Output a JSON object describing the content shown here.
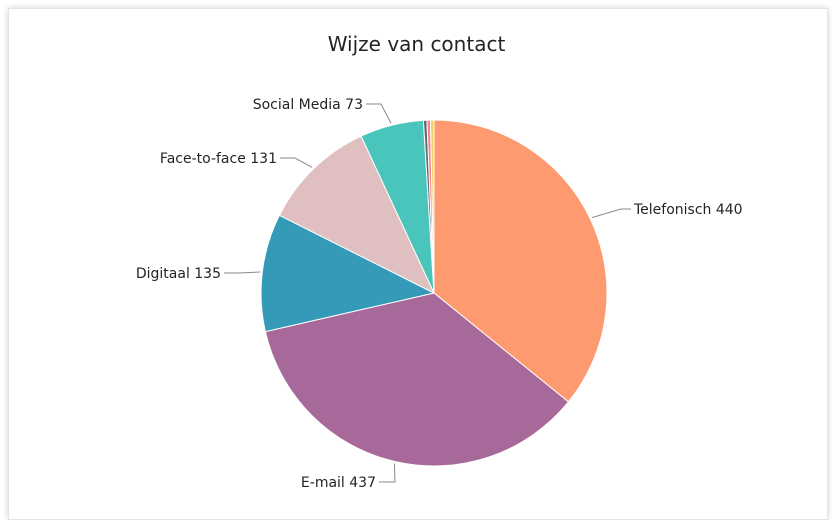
{
  "chart_data": {
    "type": "pie",
    "title": "Wijze van contact",
    "categories": [
      "Telefonisch",
      "E-mail",
      "Digitaal",
      "Face-to-face",
      "Social Media",
      "",
      "",
      ""
    ],
    "values": [
      440,
      437,
      135,
      131,
      73,
      4,
      4,
      4
    ],
    "labels": [
      "Telefonisch 440",
      "E-mail 437",
      "Digitaal 135",
      "Face-to-face 131",
      "Social Media 73",
      "",
      "",
      ""
    ],
    "colors": [
      "#FD9A6F",
      "#A66999",
      "#3599B8",
      "#DFBFBF",
      "#4AC5BB",
      "#5F6B6D",
      "#FB8281",
      "#F4D25A"
    ],
    "start": "top, clockwise",
    "legend": "none"
  }
}
